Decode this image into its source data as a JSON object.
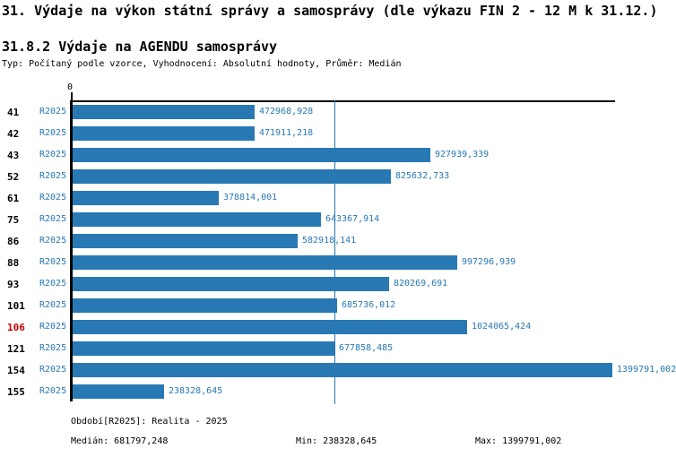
{
  "title": "31. Výdaje na výkon státní správy a samosprávy (dle výkazu FIN 2 - 12 M k 31.12.)",
  "subtitle": "31.8.2 Výdaje na AGENDU samosprávy",
  "meta_line": "Typ: Počítaný podle vzorce, Vyhodnocení: Absolutní hodnoty, Průměr: Medián",
  "colors": {
    "bar": "#2878b4",
    "blue_text": "#2878b4",
    "median_line": "#2878b4",
    "highlight": "#cc0000",
    "axis": "#000000"
  },
  "chart_data": {
    "type": "bar",
    "orientation": "horizontal",
    "axis_zero_label": "0",
    "xlim": [
      0,
      1399791.002
    ],
    "grid": false,
    "categories": [
      "41",
      "42",
      "43",
      "52",
      "61",
      "75",
      "86",
      "88",
      "93",
      "101",
      "106",
      "121",
      "154",
      "155"
    ],
    "series": [
      {
        "name": "R2025",
        "values": [
          472968.928,
          471911.218,
          927939.339,
          825632.733,
          378814.001,
          643367.914,
          582918.141,
          997296.939,
          820269.691,
          685736.012,
          1024065.424,
          677858.485,
          1399791.002,
          238328.645
        ]
      }
    ],
    "value_labels": [
      "472968,928",
      "471911,218",
      "927939,339",
      "825632,733",
      "378814,001",
      "643367,914",
      "582918,141",
      "997296,939",
      "820269,691",
      "685736,012",
      "1024065,424",
      "677858,485",
      "1399791,002",
      "238328,645"
    ],
    "highlighted_category": "106",
    "median_line_value": 681797.248
  },
  "footer": {
    "period_label": "Období[R2025]: Realita - 2025",
    "median_label": "Medián: 681797,248",
    "min_label": "Min: 238328,645",
    "max_label": "Max: 1399791,002"
  }
}
